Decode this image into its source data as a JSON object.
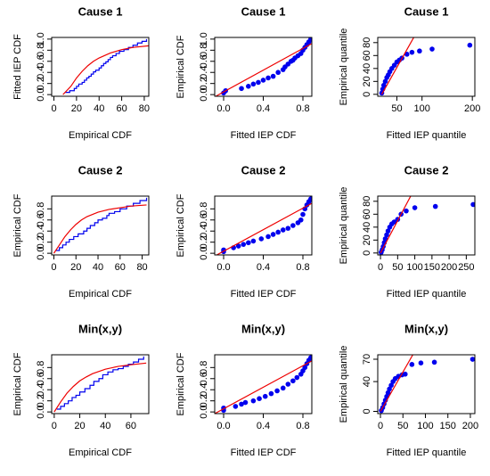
{
  "chart_data": [
    {
      "type": "cdf",
      "title": "Cause 1",
      "xlabel": "Empirical CDF",
      "ylabel": "Fitted IEP CDF",
      "xlim": [
        -2,
        84
      ],
      "ylim": [
        -0.03,
        1.03
      ],
      "xticks": [
        0,
        20,
        40,
        60,
        80
      ],
      "yticks": [
        {
          "value": 0,
          "label": "0.0"
        },
        {
          "value": 0.2,
          "label": "0.2"
        },
        {
          "value": 0.4,
          "label": "0.4"
        },
        {
          "value": 0.6,
          "label": "0.6"
        },
        {
          "value": 0.8,
          "label": "0.8"
        },
        {
          "value": 1,
          "label": "1.0"
        }
      ],
      "series": [
        {
          "style": "step",
          "color": "#0000ee",
          "x": [
            10,
            14,
            18,
            20,
            22,
            25,
            27,
            29,
            31,
            33,
            35,
            37,
            40,
            42,
            44,
            46,
            48,
            50,
            52,
            55,
            58,
            62,
            66,
            70,
            74,
            78,
            82
          ],
          "values": [
            0.04,
            0.07,
            0.11,
            0.15,
            0.19,
            0.22,
            0.26,
            0.3,
            0.33,
            0.37,
            0.41,
            0.44,
            0.48,
            0.52,
            0.56,
            0.59,
            0.63,
            0.67,
            0.7,
            0.74,
            0.78,
            0.81,
            0.85,
            0.89,
            0.93,
            0.96,
            1.0
          ]
        },
        {
          "style": "line",
          "color": "#ee0000",
          "x": [
            8,
            15,
            20,
            25,
            30,
            35,
            40,
            50,
            60,
            70,
            84
          ],
          "values": [
            0,
            0.15,
            0.3,
            0.42,
            0.52,
            0.6,
            0.66,
            0.75,
            0.81,
            0.85,
            0.88
          ]
        }
      ]
    },
    {
      "type": "pp",
      "title": "Cause 1",
      "xlabel": "Fitted IEP CDF",
      "ylabel": "Empirical CDF",
      "xlim": [
        -0.09,
        0.89
      ],
      "ylim": [
        -0.03,
        1.03
      ],
      "xticks": [
        {
          "value": 0,
          "label": "0.0"
        },
        {
          "value": 0.4,
          "label": "0.4"
        },
        {
          "value": 0.8,
          "label": "0.8"
        }
      ],
      "yticks": [
        {
          "value": 0,
          "label": "0.0"
        },
        {
          "value": 0.2,
          "label": "0.2"
        },
        {
          "value": 0.4,
          "label": "0.4"
        },
        {
          "value": 0.6,
          "label": "0.6"
        },
        {
          "value": 0.8,
          "label": "0.8"
        },
        {
          "value": 1,
          "label": "1.0"
        }
      ],
      "series": [
        {
          "style": "points",
          "color": "#0000ee",
          "x": [
            0.0,
            0.02,
            0.18,
            0.25,
            0.3,
            0.35,
            0.4,
            0.45,
            0.5,
            0.55,
            0.6,
            0.62,
            0.65,
            0.68,
            0.7,
            0.72,
            0.75,
            0.78,
            0.8,
            0.82,
            0.84,
            0.86,
            0.88
          ],
          "values": [
            0.03,
            0.07,
            0.11,
            0.15,
            0.19,
            0.22,
            0.26,
            0.3,
            0.33,
            0.4,
            0.45,
            0.5,
            0.55,
            0.6,
            0.62,
            0.66,
            0.7,
            0.74,
            0.8,
            0.85,
            0.9,
            0.95,
            1.0
          ]
        },
        {
          "style": "line",
          "color": "#ee0000",
          "x": [
            -0.09,
            0.89
          ],
          "values": [
            -0.04,
            0.92
          ]
        }
      ]
    },
    {
      "type": "qq",
      "title": "Cause 1",
      "xlabel": "Fitted IEP quantile",
      "ylabel": "Empirical quantile",
      "xlim": [
        12,
        205
      ],
      "ylim": [
        -3,
        88
      ],
      "xticks": [
        50,
        100,
        200
      ],
      "yticks": [
        0,
        20,
        40,
        60,
        80
      ],
      "series": [
        {
          "style": "points",
          "color": "#0000ee",
          "x": [
            20,
            22,
            24,
            27,
            30,
            33,
            36,
            40,
            45,
            50,
            55,
            60,
            70,
            80,
            95,
            120,
            195
          ],
          "values": [
            2,
            8,
            14,
            20,
            26,
            30,
            35,
            40,
            45,
            50,
            53,
            56,
            62,
            65,
            67,
            70,
            76
          ]
        },
        {
          "style": "line",
          "color": "#ee0000",
          "x": [
            20,
            85
          ],
          "values": [
            0,
            90
          ]
        }
      ]
    },
    {
      "type": "cdf",
      "title": "Cause 2",
      "xlabel": "Empirical CDF",
      "ylabel": "Empirical CDF",
      "xlim": [
        -2,
        86
      ],
      "ylim": [
        -0.03,
        1.03
      ],
      "xticks": [
        0,
        20,
        40,
        60,
        80
      ],
      "yticks": [
        {
          "value": 0,
          "label": "0.0"
        },
        {
          "value": 0.2,
          "label": "0.2"
        },
        {
          "value": 0.4,
          "label": "0.4"
        },
        {
          "value": 0.6,
          "label": "0.6"
        },
        {
          "value": 0.8,
          "label": "0.8"
        }
      ],
      "series": [
        {
          "style": "step",
          "color": "#0000ee",
          "x": [
            2,
            5,
            8,
            11,
            14,
            18,
            22,
            27,
            30,
            33,
            37,
            40,
            44,
            48,
            50,
            55,
            60,
            66,
            72,
            78,
            84
          ],
          "values": [
            0.05,
            0.1,
            0.15,
            0.2,
            0.25,
            0.3,
            0.35,
            0.4,
            0.45,
            0.5,
            0.55,
            0.6,
            0.63,
            0.68,
            0.72,
            0.75,
            0.8,
            0.85,
            0.9,
            0.95,
            1.0
          ]
        },
        {
          "style": "line",
          "color": "#ee0000",
          "x": [
            0,
            5,
            10,
            15,
            20,
            25,
            30,
            40,
            50,
            60,
            70,
            84
          ],
          "values": [
            0,
            0.15,
            0.3,
            0.42,
            0.52,
            0.6,
            0.66,
            0.74,
            0.79,
            0.82,
            0.85,
            0.87
          ]
        }
      ]
    },
    {
      "type": "pp",
      "title": "Cause 2",
      "xlabel": "Fitted IEP CDF",
      "ylabel": "Empirical CDF",
      "xlim": [
        -0.09,
        0.89
      ],
      "ylim": [
        -0.03,
        1.03
      ],
      "xticks": [
        {
          "value": 0,
          "label": "0.0"
        },
        {
          "value": 0.4,
          "label": "0.4"
        },
        {
          "value": 0.8,
          "label": "0.8"
        }
      ],
      "yticks": [
        {
          "value": 0,
          "label": "0.0"
        },
        {
          "value": 0.2,
          "label": "0.2"
        },
        {
          "value": 0.4,
          "label": "0.4"
        },
        {
          "value": 0.6,
          "label": "0.6"
        },
        {
          "value": 0.8,
          "label": "0.8"
        }
      ],
      "series": [
        {
          "style": "points",
          "color": "#0000ee",
          "x": [
            0.0,
            0.0,
            0.1,
            0.15,
            0.2,
            0.25,
            0.3,
            0.38,
            0.45,
            0.5,
            0.55,
            0.6,
            0.65,
            0.7,
            0.75,
            0.78,
            0.8,
            0.82,
            0.84,
            0.86,
            0.88
          ],
          "values": [
            0.03,
            0.06,
            0.1,
            0.13,
            0.16,
            0.19,
            0.22,
            0.26,
            0.3,
            0.34,
            0.38,
            0.42,
            0.45,
            0.5,
            0.55,
            0.6,
            0.7,
            0.8,
            0.87,
            0.93,
            0.98
          ]
        },
        {
          "style": "line",
          "color": "#ee0000",
          "x": [
            -0.09,
            0.89
          ],
          "values": [
            -0.05,
            0.9
          ]
        }
      ]
    },
    {
      "type": "qq",
      "title": "Cause 2",
      "xlabel": "Fitted IEP quantile",
      "ylabel": "Empirical quantile",
      "xlim": [
        -8,
        275
      ],
      "ylim": [
        -3,
        88
      ],
      "xticks": [
        0,
        50,
        100,
        150,
        200,
        250
      ],
      "yticks": [
        0,
        20,
        40,
        60,
        80
      ],
      "series": [
        {
          "style": "points",
          "color": "#0000ee",
          "x": [
            2,
            5,
            8,
            11,
            14,
            18,
            22,
            27,
            33,
            40,
            50,
            60,
            75,
            100,
            160,
            270
          ],
          "values": [
            1,
            5,
            10,
            16,
            22,
            28,
            34,
            40,
            45,
            48,
            52,
            60,
            65,
            70,
            72,
            75
          ]
        },
        {
          "style": "line",
          "color": "#ee0000",
          "x": [
            0,
            90
          ],
          "values": [
            0,
            90
          ]
        }
      ]
    },
    {
      "type": "cdf",
      "title": "Min(x,y)",
      "xlabel": "Empirical CDF",
      "ylabel": "Empirical CDF",
      "xlim": [
        -2,
        74
      ],
      "ylim": [
        -0.03,
        1.03
      ],
      "xticks": [
        0,
        20,
        40,
        60
      ],
      "yticks": [
        {
          "value": 0,
          "label": "0.0"
        },
        {
          "value": 0.2,
          "label": "0.2"
        },
        {
          "value": 0.4,
          "label": "0.4"
        },
        {
          "value": 0.6,
          "label": "0.6"
        },
        {
          "value": 0.8,
          "label": "0.8"
        }
      ],
      "series": [
        {
          "style": "step",
          "color": "#0000ee",
          "x": [
            2,
            5,
            8,
            11,
            14,
            17,
            20,
            24,
            28,
            31,
            35,
            38,
            42,
            46,
            50,
            54,
            58,
            62,
            66,
            70
          ],
          "values": [
            0.05,
            0.1,
            0.15,
            0.2,
            0.26,
            0.3,
            0.36,
            0.42,
            0.48,
            0.55,
            0.6,
            0.67,
            0.72,
            0.76,
            0.78,
            0.82,
            0.86,
            0.9,
            0.95,
            1.0
          ]
        },
        {
          "style": "line",
          "color": "#ee0000",
          "x": [
            0,
            5,
            10,
            15,
            20,
            25,
            30,
            40,
            50,
            60,
            72
          ],
          "values": [
            0,
            0.18,
            0.34,
            0.46,
            0.56,
            0.63,
            0.69,
            0.77,
            0.82,
            0.85,
            0.88
          ]
        }
      ]
    },
    {
      "type": "pp",
      "title": "Min(x,y)",
      "xlabel": "Fitted IEP CDF",
      "ylabel": "Empirical CDF",
      "xlim": [
        -0.09,
        0.89
      ],
      "ylim": [
        -0.03,
        1.03
      ],
      "xticks": [
        {
          "value": 0,
          "label": "0.0"
        },
        {
          "value": 0.4,
          "label": "0.4"
        },
        {
          "value": 0.8,
          "label": "0.8"
        }
      ],
      "yticks": [
        {
          "value": 0,
          "label": "0.0"
        },
        {
          "value": 0.2,
          "label": "0.2"
        },
        {
          "value": 0.4,
          "label": "0.4"
        },
        {
          "value": 0.6,
          "label": "0.6"
        },
        {
          "value": 0.8,
          "label": "0.8"
        }
      ],
      "series": [
        {
          "style": "points",
          "color": "#0000ee",
          "x": [
            0.0,
            0.0,
            0.12,
            0.18,
            0.22,
            0.3,
            0.36,
            0.42,
            0.48,
            0.54,
            0.6,
            0.65,
            0.7,
            0.74,
            0.78,
            0.8,
            0.82,
            0.84,
            0.86,
            0.88
          ],
          "values": [
            0.03,
            0.07,
            0.1,
            0.14,
            0.17,
            0.2,
            0.24,
            0.28,
            0.33,
            0.38,
            0.43,
            0.5,
            0.56,
            0.62,
            0.68,
            0.74,
            0.8,
            0.87,
            0.93,
            0.98
          ]
        },
        {
          "style": "line",
          "color": "#ee0000",
          "x": [
            -0.09,
            0.89
          ],
          "values": [
            -0.03,
            0.92
          ]
        }
      ]
    },
    {
      "type": "qq",
      "title": "Min(x,y)",
      "xlabel": "Fitted IEP quantile",
      "ylabel": "Empirical quantile",
      "xlim": [
        -6,
        210
      ],
      "ylim": [
        -3,
        76
      ],
      "xticks": [
        0,
        50,
        100,
        150,
        200
      ],
      "yticks": [
        0,
        40,
        70
      ],
      "series": [
        {
          "style": "points",
          "color": "#0000ee",
          "x": [
            2,
            5,
            8,
            11,
            14,
            17,
            20,
            24,
            28,
            33,
            40,
            48,
            55,
            70,
            90,
            120,
            205
          ],
          "values": [
            1,
            5,
            10,
            15,
            20,
            25,
            30,
            35,
            40,
            44,
            47,
            49,
            50,
            63,
            65,
            66,
            70
          ]
        },
        {
          "style": "line",
          "color": "#ee0000",
          "x": [
            0,
            72
          ],
          "values": [
            0,
            76
          ]
        }
      ]
    }
  ]
}
